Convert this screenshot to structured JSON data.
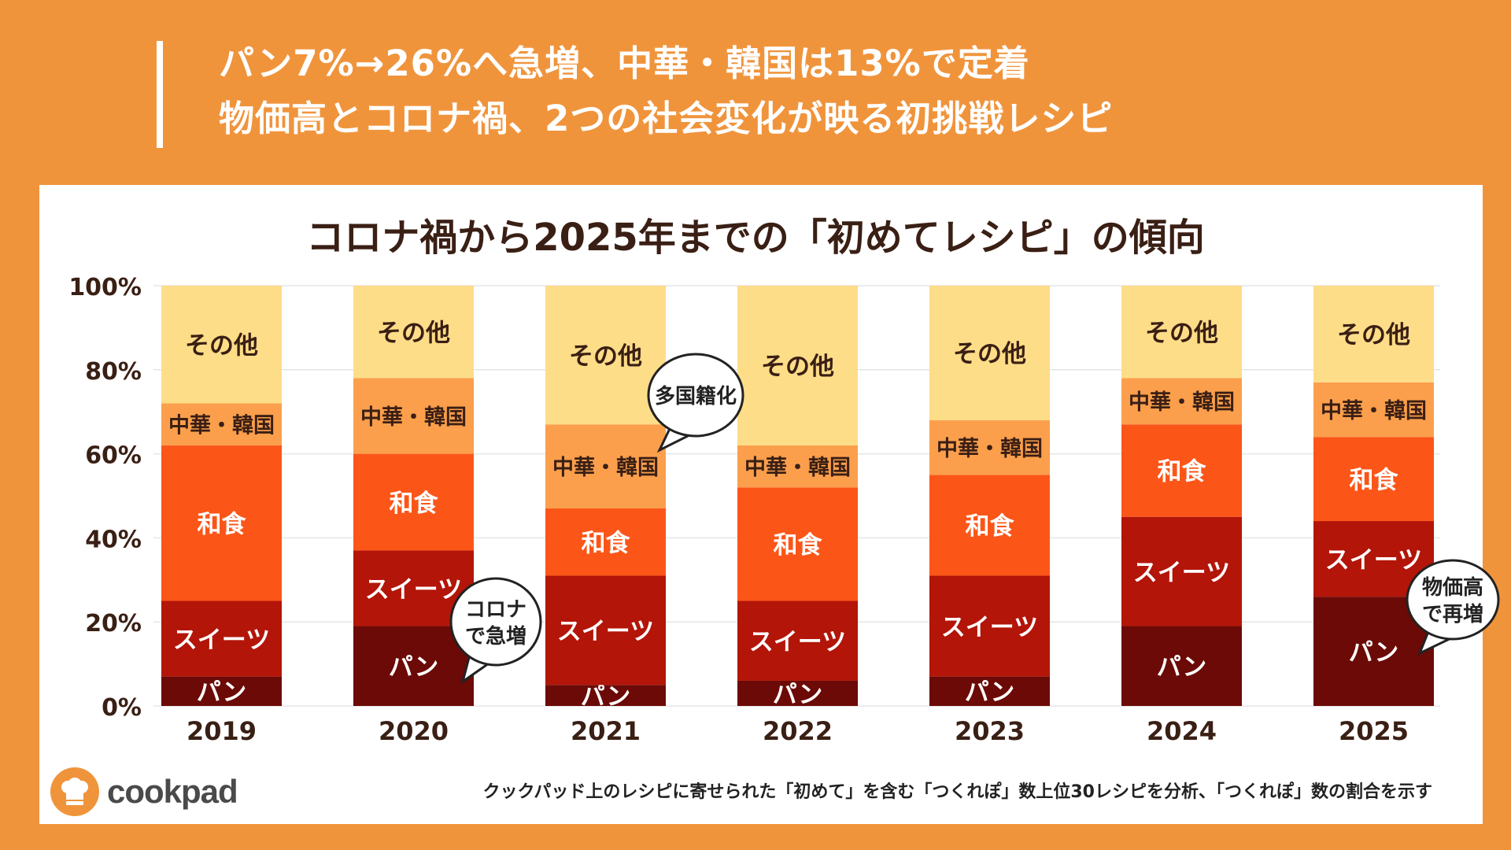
{
  "headline": {
    "line1": "パン7%→26%へ急増、中華・韓国は13%で定着",
    "line2": "物価高とコロナ禍、2つの社会変化が映る初挑戦レシピ"
  },
  "colors": {
    "background": "#F0943C",
    "pan": "#6B0A06",
    "sweets": "#B31509",
    "washoku": "#FB5618",
    "chuka": "#FB9F4C",
    "other": "#FEDD88"
  },
  "chart_data": {
    "type": "bar",
    "stacked": true,
    "title": "コロナ禍から2025年までの「初めてレシピ」の傾向",
    "xlabel": "",
    "ylabel": "",
    "ylim": [
      0,
      100
    ],
    "y_ticks": [
      "0%",
      "20%",
      "40%",
      "60%",
      "80%",
      "100%"
    ],
    "grid": true,
    "categories": [
      "2019",
      "2020",
      "2021",
      "2022",
      "2023",
      "2024",
      "2025"
    ],
    "series": [
      {
        "name": "パン",
        "color": "#6B0A06",
        "values": [
          7,
          19,
          5,
          6,
          7,
          19,
          26
        ]
      },
      {
        "name": "スイーツ",
        "color": "#B31509",
        "values": [
          18,
          18,
          26,
          19,
          24,
          26,
          18
        ]
      },
      {
        "name": "和食",
        "color": "#FB5618",
        "values": [
          37,
          23,
          16,
          27,
          24,
          22,
          20
        ]
      },
      {
        "name": "中華・韓国",
        "color": "#FB9F4C",
        "values": [
          10,
          18,
          20,
          10,
          13,
          11,
          13
        ]
      },
      {
        "name": "その他",
        "color": "#FEDD88",
        "values": [
          28,
          22,
          33,
          38,
          32,
          22,
          23
        ]
      }
    ],
    "annotations": [
      {
        "category": "2020",
        "lines": [
          "コロナ",
          "で急増"
        ]
      },
      {
        "category": "2021",
        "lines": [
          "多国籍化"
        ]
      },
      {
        "category": "2025",
        "lines": [
          "物価高",
          "で再増"
        ]
      }
    ]
  },
  "footer": {
    "note": "クックパッド上のレシピに寄せられた「初めて」を含む「つくれぽ」数上位30レシピを分析、「つくれぽ」数の割合を示す",
    "logo_text": "cookpad"
  }
}
